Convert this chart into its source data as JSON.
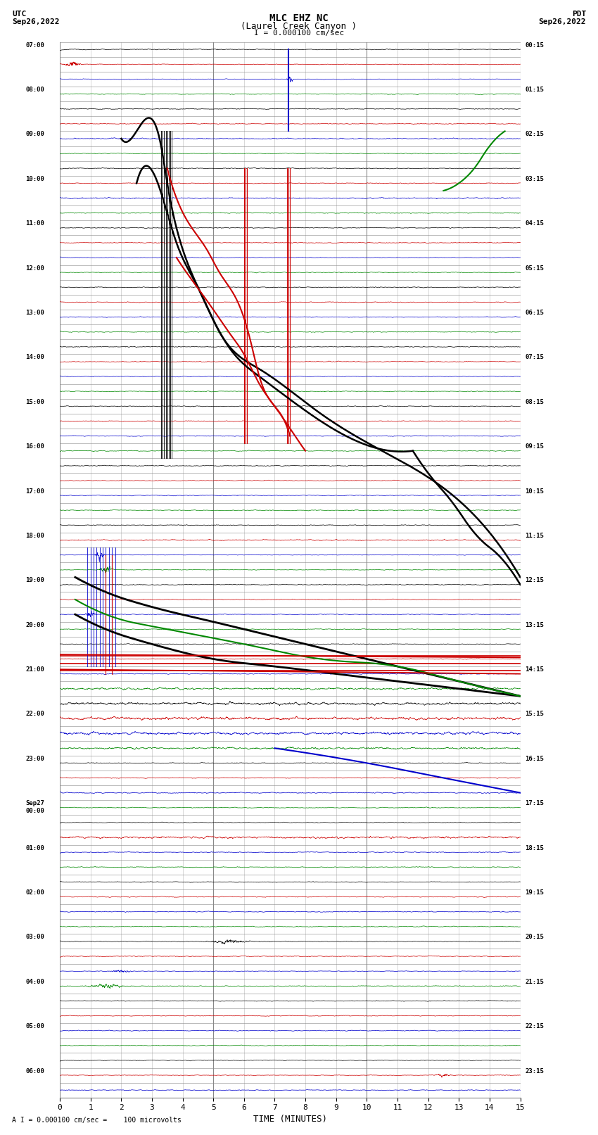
{
  "title_line1": "MLC EHZ NC",
  "title_line2": "(Laurel Creek Canyon )",
  "scale_label": "I = 0.000100 cm/sec",
  "bottom_label": "A I = 0.000100 cm/sec =    100 microvolts",
  "utc_line1": "UTC",
  "utc_line2": "Sep26,2022",
  "pdt_line1": "PDT",
  "pdt_line2": "Sep26,2022",
  "xlabel": "TIME (MINUTES)",
  "bg_color": "#ffffff",
  "grid_color": "#888888",
  "grid_minor_color": "#bbbbbb",
  "x_min": 0,
  "x_max": 15,
  "n_rows": 71,
  "colors": [
    "#000000",
    "#cc0000",
    "#0000cc",
    "#008800"
  ],
  "left_labels": [
    "07:00",
    "",
    "",
    "08:00",
    "",
    "",
    "09:00",
    "",
    "",
    "10:00",
    "",
    "",
    "11:00",
    "",
    "",
    "12:00",
    "",
    "",
    "13:00",
    "",
    "",
    "14:00",
    "",
    "",
    "15:00",
    "",
    "",
    "16:00",
    "",
    "",
    "17:00",
    "",
    "",
    "18:00",
    "",
    "",
    "19:00",
    "",
    "",
    "20:00",
    "",
    "",
    "21:00",
    "",
    "",
    "22:00",
    "",
    "",
    "23:00",
    "",
    "",
    "Sep27\n00:00",
    "",
    "",
    "01:00",
    "",
    "",
    "02:00",
    "",
    "",
    "03:00",
    "",
    "",
    "04:00",
    "",
    "",
    "05:00",
    "",
    "",
    "06:00",
    ""
  ],
  "right_labels": [
    "00:15",
    "",
    "",
    "01:15",
    "",
    "",
    "02:15",
    "",
    "",
    "03:15",
    "",
    "",
    "04:15",
    "",
    "",
    "05:15",
    "",
    "",
    "06:15",
    "",
    "",
    "07:15",
    "",
    "",
    "08:15",
    "",
    "",
    "09:15",
    "",
    "",
    "10:15",
    "",
    "",
    "11:15",
    "",
    "",
    "12:15",
    "",
    "",
    "13:15",
    "",
    "",
    "14:15",
    "",
    "",
    "15:15",
    "",
    "",
    "16:15",
    "",
    "",
    "17:15",
    "",
    "",
    "18:15",
    "",
    "",
    "19:15",
    "",
    "",
    "20:15",
    "",
    "",
    "21:15",
    "",
    "",
    "22:15",
    "",
    "",
    "23:15",
    ""
  ]
}
